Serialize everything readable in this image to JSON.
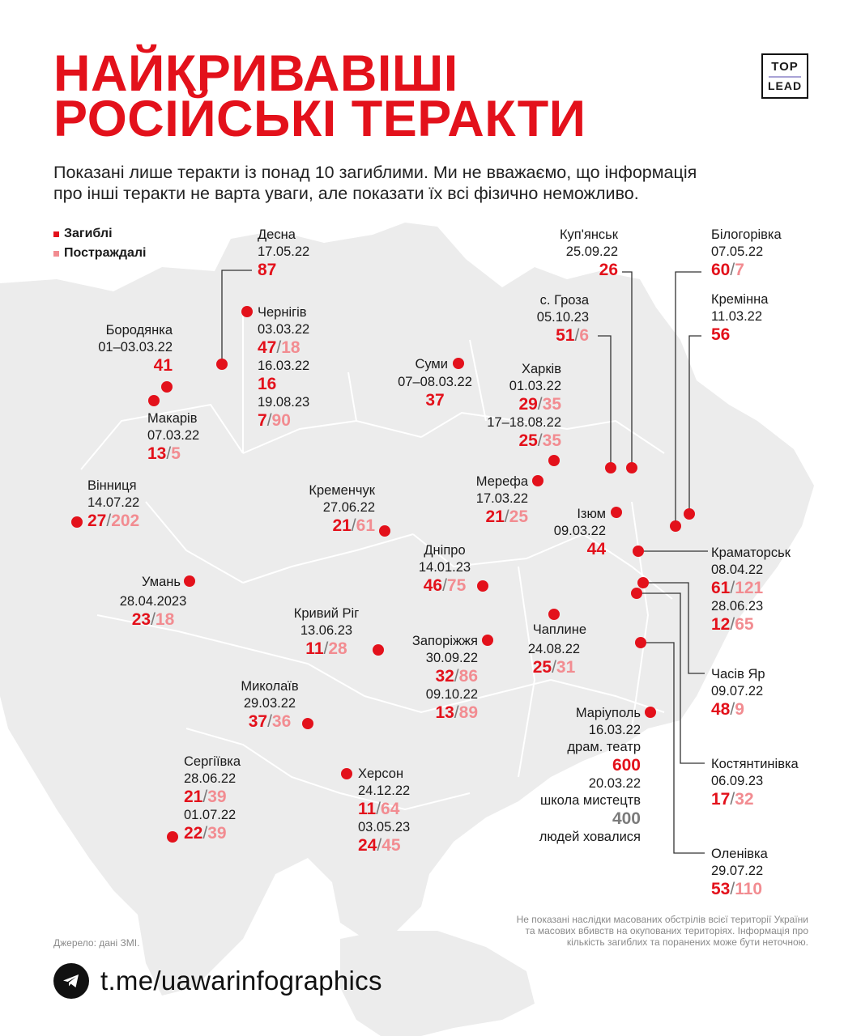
{
  "title": {
    "line1": "НАЙКРИВАВІШІ",
    "line2": "РОСІЙСЬКІ ТЕРАКТИ"
  },
  "subtitle": {
    "line1": "Показані лише теракти із понад 10 загиблими. Ми не вважаємо, що інформація",
    "line2": "про інші теракти не варта уваги, але показати їх всі фізично неможливо."
  },
  "logo": {
    "top": "TOP",
    "bottom": "LEAD"
  },
  "legend": {
    "killed": "Загиблі",
    "injured": "Постраждалі"
  },
  "colors": {
    "killed": "#e3111b",
    "injured": "#f28c91",
    "map": "#ececec",
    "border": "#ffffff"
  },
  "events": {
    "desna": {
      "name": "Десна",
      "date": "17.05.22",
      "killed": "87"
    },
    "chernihiv": {
      "name": "Чернігів",
      "date1": "03.03.22",
      "killed1": "47",
      "injured1": "18",
      "date2": "16.03.22",
      "killed2": "16",
      "date3": "19.08.23",
      "killed3": "7",
      "injured3": "90"
    },
    "borodianka": {
      "name": "Бородянка",
      "date": "01–03.03.22",
      "killed": "41"
    },
    "makariv": {
      "name": "Макарів",
      "date": "07.03.22",
      "killed": "13",
      "injured": "5"
    },
    "vinnytsia": {
      "name": "Вінниця",
      "date": "14.07.22",
      "killed": "27",
      "injured": "202"
    },
    "uman": {
      "name": "Умань",
      "date": "28.04.2023",
      "killed": "23",
      "injured": "18"
    },
    "kremenchuk": {
      "name": "Кременчук",
      "date": "27.06.22",
      "killed": "21",
      "injured": "61"
    },
    "sumy": {
      "name": "Суми",
      "date": "07–08.03.22",
      "killed": "37"
    },
    "kharkiv": {
      "name": "Харків",
      "date1": "01.03.22",
      "killed1": "29",
      "injured1": "35",
      "date2": "17–18.08.22",
      "killed2": "25",
      "injured2": "35"
    },
    "kupiansk": {
      "name": "Куп'янськ",
      "date": "25.09.22",
      "killed": "26"
    },
    "groza": {
      "name": "с. Гроза",
      "date": "05.10.23",
      "killed": "51",
      "injured": "6"
    },
    "bilohorivka": {
      "name": "Білогорівка",
      "date": "07.05.22",
      "killed": "60",
      "injured": "7"
    },
    "kreminna": {
      "name": "Кремінна",
      "date": "11.03.22",
      "killed": "56"
    },
    "merefa": {
      "name": "Мерефа",
      "date": "17.03.22",
      "killed": "21",
      "injured": "25"
    },
    "izium": {
      "name": "Ізюм",
      "date": "09.03.22",
      "killed": "44"
    },
    "dnipro": {
      "name": "Дніпро",
      "date": "14.01.23",
      "killed": "46",
      "injured": "75"
    },
    "kryvyi_rih": {
      "name": "Кривий Ріг",
      "date": "13.06.23",
      "killed": "11",
      "injured": "28"
    },
    "zaporizhzhia": {
      "name": "Запоріжжя",
      "date1": "30.09.22",
      "killed1": "32",
      "injured1": "86",
      "date2": "09.10.22",
      "killed2": "13",
      "injured2": "89"
    },
    "chaplyne": {
      "name": "Чаплине",
      "date": "24.08.22",
      "killed": "25",
      "injured": "31"
    },
    "kramatorsk": {
      "name": "Краматорськ",
      "date1": "08.04.22",
      "killed1": "61",
      "injured1": "121",
      "date2": "28.06.23",
      "killed2": "12",
      "injured2": "65"
    },
    "chasiv_yar": {
      "name": "Часів Яр",
      "date": "09.07.22",
      "killed": "48",
      "injured": "9"
    },
    "kostiantynivka": {
      "name": "Костянтинівка",
      "date": "06.09.23",
      "killed": "17",
      "injured": "32"
    },
    "olenivka": {
      "name": "Оленівка",
      "date": "29.07.22",
      "killed": "53",
      "injured": "110"
    },
    "mariupol": {
      "name": "Маріуполь",
      "date1": "16.03.22",
      "place1": "драм. театр",
      "killed1": "600",
      "date2": "20.03.22",
      "place2": "школа мистецтв",
      "hidden2": "400",
      "note2": "людей ховалися"
    },
    "mykolaiv": {
      "name": "Миколаїв",
      "date": "29.03.22",
      "killed": "37",
      "injured": "36"
    },
    "serhiivka": {
      "name": "Сергіївка",
      "date1": "28.06.22",
      "killed1": "21",
      "injured1": "39",
      "date2": "01.07.22",
      "killed2": "22",
      "injured2": "39"
    },
    "kherson": {
      "name": "Херсон",
      "date1": "24.12.22",
      "killed1": "11",
      "injured1": "64",
      "date2": "03.05.23",
      "killed2": "24",
      "injured2": "45"
    }
  },
  "source": "Джерело: дані ЗМІ.",
  "note": {
    "line1": "Не показані наслідки масованих обстрілів всієї території України",
    "line2": "та масових вбивств на окупованих територіях. Інформація про",
    "line3": "кількість загиблих та поранених може бути неточною."
  },
  "footer": {
    "link": "t.me/uawarinfographics"
  }
}
